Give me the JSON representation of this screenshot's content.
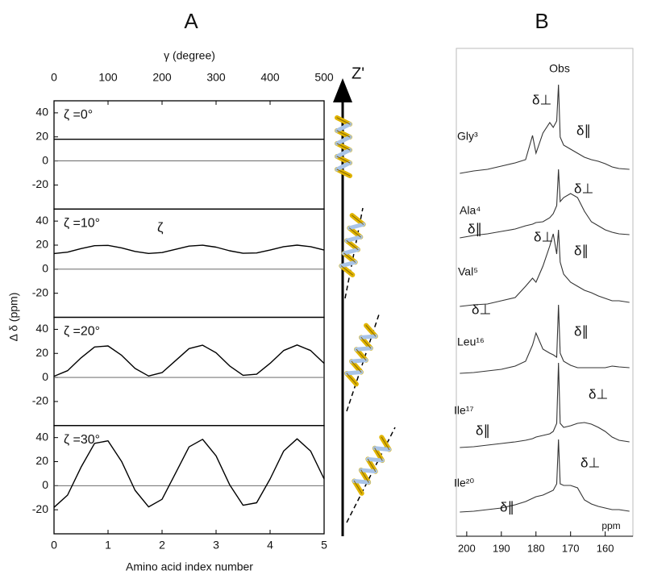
{
  "panel_labels": [
    "A",
    "B"
  ],
  "panel_a_axes": {
    "xlim": [
      0,
      5
    ],
    "xticks": [
      0,
      1,
      2,
      3,
      4,
      5
    ],
    "xlabel": "Amino acid index number",
    "x2lim": [
      0,
      500
    ],
    "x2ticks": [
      0,
      100,
      200,
      300,
      400,
      500
    ],
    "x2label": "γ (degree)",
    "ylabel": "Δ δ (ppm)",
    "zaxis": "Z'"
  },
  "chart_data": [
    {
      "type": "line",
      "annotation": "ζ =0°",
      "color": "#000000",
      "ylim": [
        -40,
        50
      ],
      "yticks": [
        -20,
        0,
        20,
        40
      ],
      "x": [
        0,
        5
      ],
      "values": [
        18,
        18
      ]
    },
    {
      "type": "line",
      "annotation": "ζ =10°",
      "note": "ζ",
      "color": "#000000",
      "ylim": [
        -40,
        50
      ],
      "yticks": [
        -20,
        0,
        20,
        40
      ],
      "x": [
        0,
        0.25,
        0.5,
        0.75,
        1,
        1.25,
        1.5,
        1.75,
        2,
        2.25,
        2.5,
        2.75,
        3,
        3.25,
        3.5,
        3.75,
        4,
        4.25,
        4.5,
        4.75,
        5
      ],
      "values": [
        13,
        14.2,
        17.1,
        19.5,
        19.8,
        17.7,
        14.8,
        13.1,
        13.8,
        16.5,
        19.2,
        19.9,
        18.3,
        15.3,
        13.2,
        13.5,
        15.9,
        18.7,
        20,
        18.7,
        15.9
      ]
    },
    {
      "type": "line",
      "annotation": "ζ =20°",
      "color": "#000000",
      "ylim": [
        -40,
        50
      ],
      "yticks": [
        -20,
        0,
        20,
        40
      ],
      "x": [
        0,
        0.25,
        0.5,
        0.75,
        1,
        1.25,
        1.5,
        1.75,
        2,
        2.25,
        2.5,
        2.75,
        3,
        3.25,
        3.5,
        3.75,
        4,
        4.25,
        4.5,
        4.75,
        5
      ],
      "values": [
        1,
        5.6,
        16.3,
        25.3,
        26.2,
        18.4,
        7.5,
        1.2,
        4,
        14,
        24,
        26.8,
        20.5,
        9.6,
        1.8,
        2.7,
        11.7,
        22.4,
        27,
        22.4,
        11.7
      ]
    },
    {
      "type": "line",
      "annotation": "ζ =30°",
      "color": "#000000",
      "ylim": [
        -40,
        50
      ],
      "yticks": [
        -20,
        0,
        20,
        40
      ],
      "x": [
        0,
        0.25,
        0.5,
        0.75,
        1,
        1.25,
        1.5,
        1.75,
        2,
        2.25,
        2.5,
        2.75,
        3,
        3.25,
        3.5,
        3.75,
        4,
        4.25,
        4.5,
        4.75,
        5
      ],
      "values": [
        -18,
        -7.8,
        15.4,
        35.2,
        37.3,
        20.2,
        -3.8,
        -17.6,
        -11.3,
        10.5,
        32.3,
        38.6,
        24.8,
        0.8,
        -16.3,
        -14.2,
        5.6,
        28.8,
        39,
        28.8,
        5.6
      ]
    },
    {
      "type": "spectra",
      "title": "Obs",
      "xlabel": "ppm",
      "xlim": [
        203,
        152
      ],
      "xticks": [
        200,
        190,
        180,
        170,
        160
      ],
      "annotations": {
        "perp": "δ⊥",
        "par": "δ∥"
      },
      "color": "#333333",
      "x": [
        202,
        198,
        194,
        190,
        186,
        183,
        181,
        180,
        178,
        176,
        175,
        174,
        173.5,
        173,
        172,
        170,
        168,
        166,
        164,
        162,
        160,
        158,
        156,
        153
      ],
      "series": [
        {
          "name": "Gly³",
          "values": [
            5,
            8,
            10,
            14,
            18,
            22,
            52,
            30,
            55,
            68,
            62,
            70,
            115,
            50,
            40,
            35,
            30,
            25,
            22,
            20,
            17,
            13,
            11,
            10
          ]
        },
        {
          "name": "Ala⁴",
          "values": [
            5,
            8,
            10,
            13,
            16,
            20,
            22,
            24,
            25,
            30,
            35,
            45,
            90,
            50,
            55,
            60,
            55,
            38,
            25,
            20,
            15,
            12,
            10,
            9
          ]
        },
        {
          "name": "Val⁵",
          "values": [
            5,
            7,
            8,
            12,
            16,
            30,
            40,
            35,
            55,
            80,
            95,
            70,
            100,
            60,
            45,
            35,
            30,
            25,
            22,
            18,
            15,
            12,
            12,
            10
          ]
        },
        {
          "name": "Leu¹⁶",
          "values": [
            5,
            6,
            8,
            10,
            14,
            20,
            40,
            55,
            35,
            30,
            28,
            25,
            90,
            30,
            20,
            15,
            12,
            12,
            12,
            12,
            12,
            14,
            13,
            12
          ]
        },
        {
          "name": "Ile¹⁷",
          "values": [
            5,
            6,
            8,
            10,
            12,
            14,
            16,
            18,
            20,
            22,
            25,
            35,
            110,
            35,
            30,
            32,
            35,
            36,
            34,
            30,
            25,
            18,
            14,
            12
          ]
        },
        {
          "name": "Ile²⁰",
          "values": [
            5,
            6,
            8,
            10,
            14,
            18,
            22,
            24,
            26,
            30,
            32,
            40,
            95,
            40,
            38,
            38,
            35,
            20,
            15,
            12,
            10,
            8,
            8,
            6
          ]
        }
      ]
    }
  ]
}
